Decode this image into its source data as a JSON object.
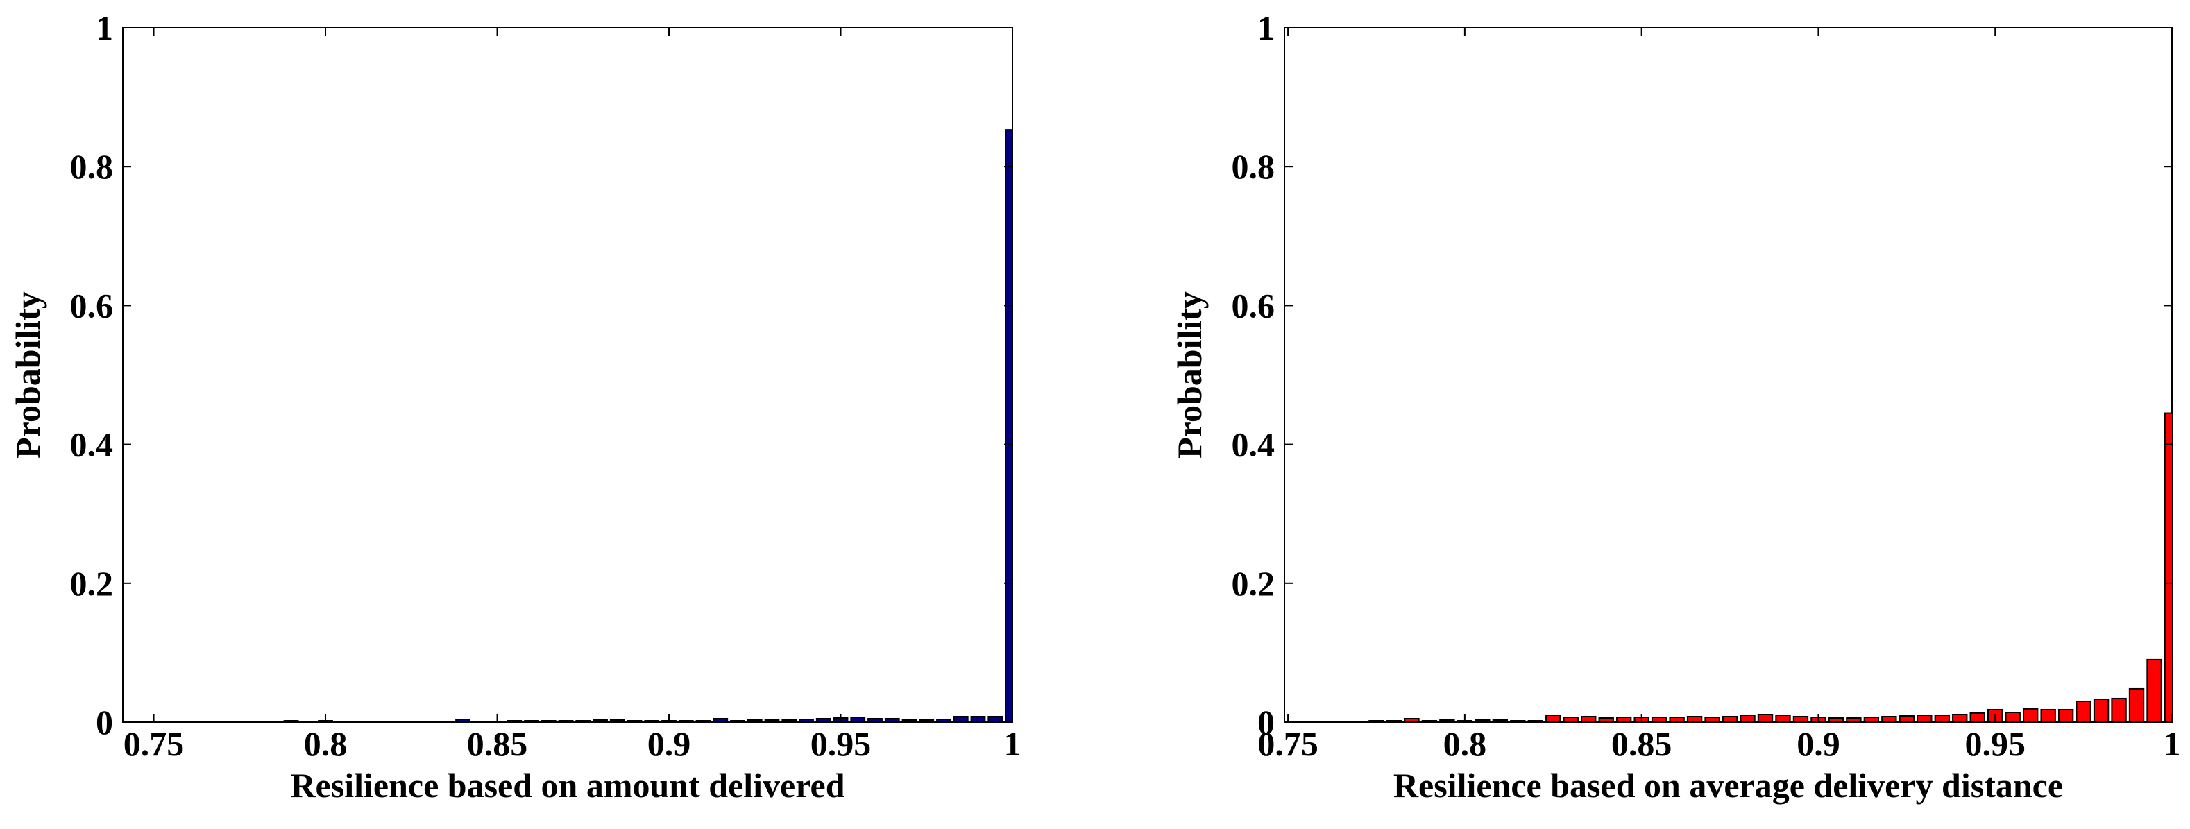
{
  "chart_data": [
    {
      "type": "histogram",
      "xlabel": "Resilience based on amount delivered",
      "ylabel": "Probability",
      "color": "#000080",
      "bins": [
        0.7575,
        0.7625,
        0.7675,
        0.7725,
        0.7775,
        0.7825,
        0.7875,
        0.7925,
        0.7975,
        0.8025,
        0.8075,
        0.8125,
        0.8175,
        0.8225,
        0.8275,
        0.8325,
        0.8375,
        0.8425,
        0.8475,
        0.8525,
        0.8575,
        0.8625,
        0.8675,
        0.8725,
        0.8775,
        0.8825,
        0.8875,
        0.8925,
        0.8975,
        0.9025,
        0.9075,
        0.9125,
        0.9175,
        0.9225,
        0.9275,
        0.9325,
        0.9375,
        0.9425,
        0.9475,
        0.9525,
        0.9575,
        0.9625,
        0.9675,
        0.9725,
        0.9775,
        0.9825,
        0.9875,
        0.9925,
        0.9975,
        1.0025
      ],
      "values": [
        0.001,
        0,
        0.001,
        0,
        0.001,
        0.001,
        0.002,
        0.001,
        0.002,
        0.001,
        0.001,
        0.001,
        0.001,
        0,
        0.001,
        0.001,
        0.004,
        0.001,
        0.001,
        0.002,
        0.002,
        0.002,
        0.002,
        0.002,
        0.003,
        0.003,
        0.002,
        0.002,
        0.002,
        0.002,
        0.002,
        0.005,
        0.002,
        0.003,
        0.003,
        0.003,
        0.004,
        0.005,
        0.006,
        0.007,
        0.005,
        0.005,
        0.003,
        0.003,
        0.004,
        0.008,
        0.008,
        0.008,
        0.853
      ],
      "xlim": [
        0.741,
        1
      ],
      "xticks": [
        0.75,
        0.8,
        0.85,
        0.9,
        0.95,
        1
      ],
      "ylim": [
        0,
        1
      ],
      "yticks": [
        0,
        0.2,
        0.4,
        0.6,
        0.8,
        1
      ]
    },
    {
      "type": "histogram",
      "xlabel": "Resilience based on average delivery distance",
      "ylabel": "Probability",
      "color": "#ff0000",
      "bins": [
        0.7575,
        0.7625,
        0.7675,
        0.7725,
        0.7775,
        0.7825,
        0.7875,
        0.7925,
        0.7975,
        0.8025,
        0.8075,
        0.8125,
        0.8175,
        0.8225,
        0.8275,
        0.8325,
        0.8375,
        0.8425,
        0.8475,
        0.8525,
        0.8575,
        0.8625,
        0.8675,
        0.8725,
        0.8775,
        0.8825,
        0.8875,
        0.8925,
        0.8975,
        0.9025,
        0.9075,
        0.9125,
        0.9175,
        0.9225,
        0.9275,
        0.9325,
        0.9375,
        0.9425,
        0.9475,
        0.9525,
        0.9575,
        0.9625,
        0.9675,
        0.9725,
        0.9775,
        0.9825,
        0.9875,
        0.9925,
        0.9975,
        1.0025
      ],
      "values": [
        0.001,
        0.001,
        0.001,
        0.002,
        0.002,
        0.005,
        0.002,
        0.003,
        0.002,
        0.003,
        0.003,
        0.002,
        0.002,
        0.01,
        0.007,
        0.008,
        0.006,
        0.007,
        0.007,
        0.007,
        0.007,
        0.008,
        0.007,
        0.008,
        0.01,
        0.011,
        0.01,
        0.008,
        0.007,
        0.006,
        0.006,
        0.007,
        0.008,
        0.009,
        0.01,
        0.01,
        0.011,
        0.013,
        0.018,
        0.014,
        0.019,
        0.018,
        0.018,
        0.03,
        0.033,
        0.034,
        0.048,
        0.09,
        0.445
      ],
      "xlim": [
        0.749,
        1
      ],
      "xticks": [
        0.75,
        0.8,
        0.85,
        0.9,
        0.95,
        1
      ],
      "ylim": [
        0,
        1
      ],
      "yticks": [
        0,
        0.2,
        0.4,
        0.6,
        0.8,
        1
      ]
    }
  ]
}
